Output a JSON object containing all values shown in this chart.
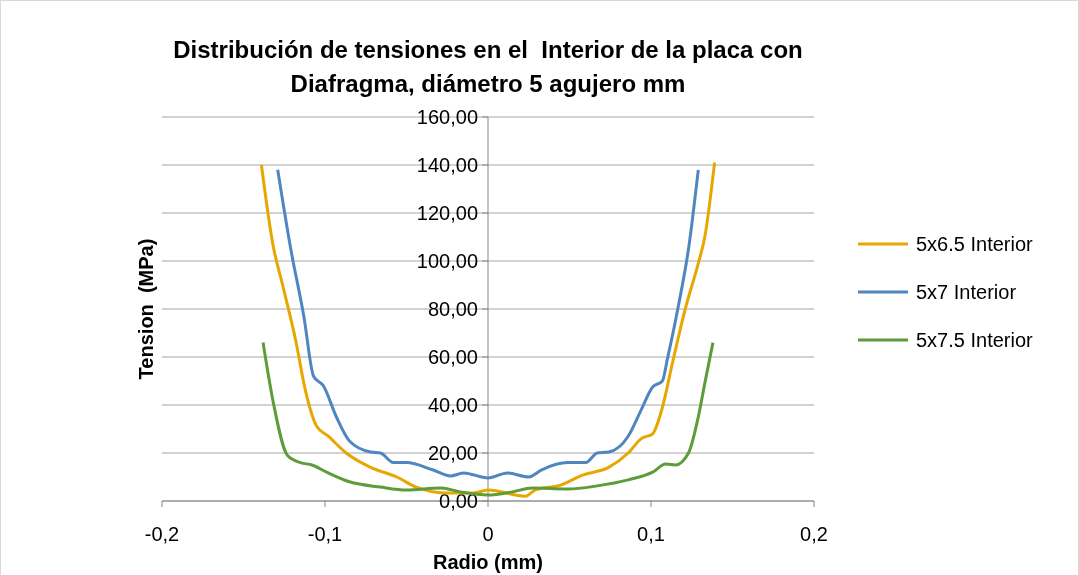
{
  "chart_data": {
    "type": "line",
    "title": "Distribución de tensiones en el  Interior de la placa con\nDiafragma, diámetro 5 agujero mm",
    "xlabel": "Radio (mm)",
    "ylabel": "Tension  (MPa)",
    "xlim": [
      -0.2,
      0.2
    ],
    "xticks": [
      {
        "value": -0.2,
        "label": "-0,2"
      },
      {
        "value": -0.1,
        "label": "-0,1"
      },
      0,
      {
        "value": 0.1,
        "label": "0,1"
      },
      {
        "value": 0.2,
        "label": "0,2"
      }
    ],
    "ylim": [
      0,
      160
    ],
    "yticks": [
      {
        "value": 0,
        "label": "0,00"
      },
      {
        "value": 20,
        "label": "20,00"
      },
      {
        "value": 40,
        "label": "40,00"
      },
      {
        "value": 60,
        "label": "60,00"
      },
      {
        "value": 80,
        "label": "80,00"
      },
      {
        "value": 100,
        "label": "100,00"
      },
      {
        "value": 120,
        "label": "120,00"
      },
      {
        "value": 140,
        "label": "140,00"
      },
      {
        "value": 160,
        "label": "160,00"
      }
    ],
    "grid": "y",
    "legend": "right",
    "marker": "none",
    "line_style": "solid",
    "series": [
      {
        "name": "5x6.5 Interior",
        "color": "#e6a800",
        "x": [
          -0.139,
          -0.132,
          -0.126,
          -0.118,
          -0.112,
          -0.105,
          -0.098,
          -0.087,
          -0.072,
          -0.056,
          -0.044,
          -0.025,
          -0.009,
          0,
          0.023,
          0.029,
          0.045,
          0.058,
          0.074,
          0.086,
          0.094,
          0.101,
          0.107,
          0.113,
          0.121,
          0.129,
          0.133,
          0.139
        ],
        "values": [
          140,
          107,
          90,
          67,
          46,
          31,
          27,
          20,
          14,
          10,
          5.8,
          3.3,
          3.3,
          4.6,
          2,
          4.6,
          6.7,
          10.8,
          14,
          20,
          26,
          28,
          39,
          57,
          80,
          99,
          110,
          141
        ]
      },
      {
        "name": "5x7 Interior",
        "color": "#4f86c0",
        "x": [
          -0.129,
          -0.121,
          -0.113,
          -0.107,
          -0.101,
          -0.093,
          -0.085,
          -0.072,
          -0.066,
          -0.058,
          -0.05,
          -0.034,
          -0.023,
          -0.015,
          0,
          0.012,
          0.025,
          0.033,
          0.049,
          0.06,
          0.067,
          0.074,
          0.086,
          0.094,
          0.101,
          0.107,
          0.11,
          0.117,
          0.123,
          0.129
        ],
        "values": [
          138,
          105,
          77,
          52,
          48,
          35,
          25,
          20.4,
          20,
          16,
          16,
          13,
          10.4,
          11.7,
          9.6,
          11.7,
          10,
          13,
          16,
          16,
          20,
          20.4,
          27,
          38,
          47.5,
          50,
          59,
          82,
          105,
          138
        ]
      },
      {
        "name": "5x7.5 Interior",
        "color": "#5e9c3a",
        "x": [
          -0.138,
          -0.132,
          -0.123,
          -0.115,
          -0.108,
          -0.099,
          -0.085,
          -0.066,
          -0.05,
          -0.029,
          -0.017,
          0,
          0.015,
          0.027,
          0.049,
          0.067,
          0.086,
          0.101,
          0.109,
          0.115,
          0.123,
          0.129,
          0.133,
          0.138
        ],
        "values": [
          66,
          42,
          19,
          16,
          15,
          12,
          8,
          5.8,
          4.6,
          5.4,
          3.8,
          2.5,
          3.8,
          5.4,
          5,
          6.3,
          8.8,
          12,
          15.4,
          15,
          20,
          35,
          49,
          66
        ]
      }
    ]
  }
}
